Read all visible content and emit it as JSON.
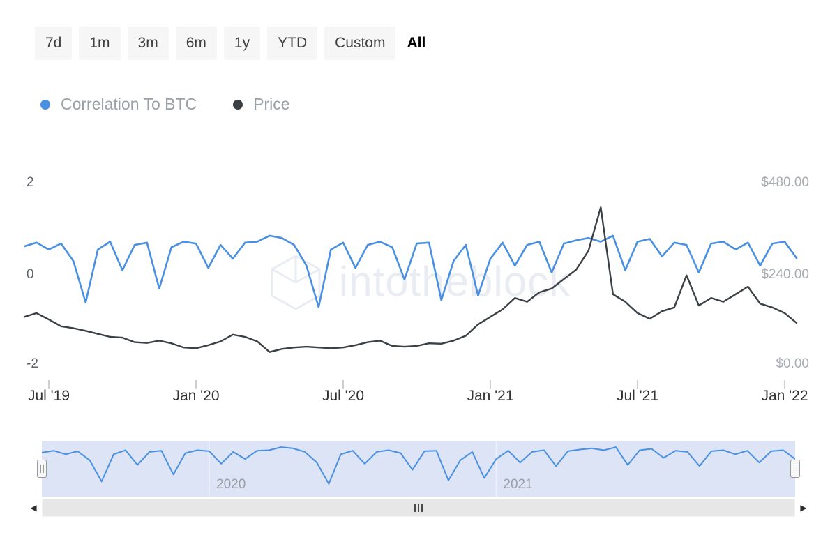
{
  "toolbar": {
    "ranges": [
      {
        "label": "7d",
        "active": false
      },
      {
        "label": "1m",
        "active": false
      },
      {
        "label": "3m",
        "active": false
      },
      {
        "label": "6m",
        "active": false
      },
      {
        "label": "1y",
        "active": false
      },
      {
        "label": "YTD",
        "active": false
      },
      {
        "label": "Custom",
        "active": false
      },
      {
        "label": "All",
        "active": true
      }
    ]
  },
  "legend": {
    "items": [
      {
        "label": "Correlation To BTC",
        "color": "#4a90e2"
      },
      {
        "label": "Price",
        "color": "#3b4045"
      }
    ]
  },
  "watermark": {
    "text": "intotheblock"
  },
  "chart_data": {
    "type": "line",
    "x_unit": "months since 2019-07-01",
    "x": [
      -1,
      -0.5,
      0,
      0.5,
      1,
      1.5,
      2,
      2.5,
      3,
      3.5,
      4,
      4.5,
      5,
      5.5,
      6,
      6.5,
      7,
      7.5,
      8,
      8.5,
      9,
      9.5,
      10,
      10.5,
      11,
      11.5,
      12,
      12.5,
      13,
      13.5,
      14,
      14.5,
      15,
      15.5,
      16,
      16.5,
      17,
      17.5,
      18,
      18.5,
      19,
      19.5,
      20,
      20.5,
      21,
      21.5,
      22,
      22.5,
      23,
      23.5,
      24,
      24.5,
      25,
      25.5,
      26,
      26.5,
      27,
      27.5,
      28,
      28.5,
      29,
      29.5,
      30,
      30.5
    ],
    "series": [
      {
        "name": "Correlation To BTC",
        "axis": "correlation",
        "color": "#4a90e2",
        "values": [
          0.62,
          0.7,
          0.55,
          0.68,
          0.3,
          -0.6,
          0.55,
          0.72,
          0.1,
          0.65,
          0.7,
          -0.3,
          0.6,
          0.72,
          0.68,
          0.15,
          0.65,
          0.35,
          0.7,
          0.72,
          0.85,
          0.8,
          0.65,
          0.2,
          -0.7,
          0.55,
          0.7,
          0.15,
          0.65,
          0.72,
          0.6,
          -0.1,
          0.68,
          0.7,
          -0.55,
          0.3,
          0.65,
          -0.45,
          0.35,
          0.7,
          0.2,
          0.65,
          0.72,
          0.05,
          0.68,
          0.75,
          0.8,
          0.72,
          0.85,
          0.1,
          0.72,
          0.78,
          0.4,
          0.7,
          0.65,
          0.05,
          0.68,
          0.72,
          0.55,
          0.7,
          0.2,
          0.68,
          0.72,
          0.35
        ]
      },
      {
        "name": "Price",
        "axis": "price",
        "color": "#3b4045",
        "values": [
          125,
          135,
          118,
          100,
          95,
          88,
          80,
          72,
          70,
          58,
          56,
          62,
          55,
          44,
          42,
          50,
          60,
          78,
          72,
          60,
          32,
          40,
          44,
          46,
          44,
          42,
          44,
          50,
          58,
          62,
          48,
          46,
          48,
          55,
          54,
          62,
          75,
          105,
          125,
          145,
          175,
          165,
          190,
          200,
          225,
          250,
          300,
          415,
          185,
          165,
          135,
          120,
          140,
          150,
          235,
          155,
          175,
          165,
          185,
          205,
          160,
          150,
          135,
          108
        ]
      }
    ],
    "corr_axis": {
      "min": -2,
      "max": 2,
      "ticks": [
        2,
        0,
        -2
      ],
      "tick_labels": [
        "2",
        "0",
        "-2"
      ]
    },
    "price_axis": {
      "min": 0,
      "max": 480,
      "ticks": [
        480,
        240,
        0
      ],
      "tick_labels": [
        "$480.00",
        "$240.00",
        "$0.00"
      ]
    },
    "x_axis": {
      "ticks": [
        {
          "m": 0,
          "label": "Jul '19"
        },
        {
          "m": 6,
          "label": "Jan '20"
        },
        {
          "m": 12,
          "label": "Jul '20"
        },
        {
          "m": 18,
          "label": "Jan '21"
        },
        {
          "m": 24,
          "label": "Jul '21"
        },
        {
          "m": 30,
          "label": "Jan '22"
        }
      ]
    },
    "navigator": {
      "gridlines": [
        {
          "m": 6,
          "label": "2020"
        },
        {
          "m": 18,
          "label": "2021"
        }
      ],
      "background": "#dce4f6",
      "line_color": "#4a90e2"
    },
    "legend_position": "top",
    "grid": false
  },
  "scrollbar": {
    "left_arrow": "◀",
    "right_arrow": "▶"
  }
}
